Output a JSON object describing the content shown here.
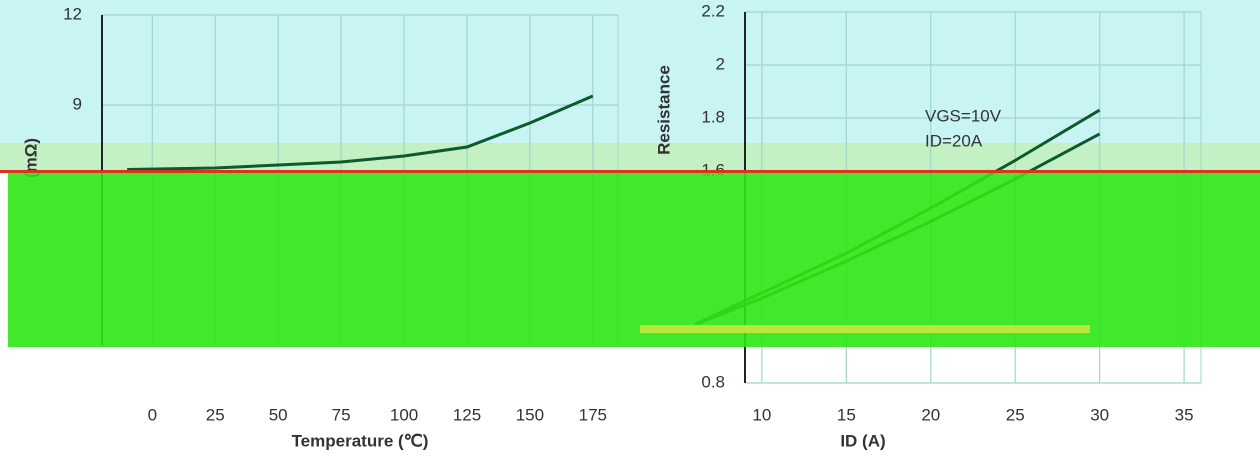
{
  "chart_data": [
    {
      "type": "line",
      "y_label": "(mΩ)",
      "x_label": "Temperature (℃)",
      "x": [
        -10,
        25,
        50,
        75,
        100,
        125,
        150,
        175
      ],
      "series": [
        {
          "color": "#0d5a2a",
          "values": [
            6.85,
            6.9,
            7.0,
            7.1,
            7.3,
            7.6,
            8.4,
            9.3
          ]
        }
      ],
      "xlim": [
        -20,
        185
      ],
      "ylim": [
        1,
        12
      ],
      "xticks": [
        0,
        25,
        50,
        75,
        100,
        125,
        150,
        175
      ],
      "yticks": [
        9,
        12
      ],
      "grid": true
    },
    {
      "type": "line",
      "y_label": "Resistance",
      "x_label": "ID (A)",
      "annotations": [
        "VGS=10V",
        "ID=20A"
      ],
      "x": [
        6,
        10,
        15,
        20,
        25,
        30
      ],
      "series": [
        {
          "color": "#0d5a2a",
          "values": [
            1.02,
            1.14,
            1.29,
            1.46,
            1.64,
            1.83
          ]
        },
        {
          "color": "#0d5a2a",
          "values": [
            1.02,
            1.12,
            1.26,
            1.41,
            1.57,
            1.74
          ]
        }
      ],
      "xlim": [
        9,
        36
      ],
      "ylim": [
        0.8,
        2.2
      ],
      "xticks": [
        10,
        15,
        20,
        25,
        30,
        35
      ],
      "yticks": [
        0.8,
        1.6,
        1.8,
        2.0,
        2.2
      ],
      "grid": true
    }
  ]
}
